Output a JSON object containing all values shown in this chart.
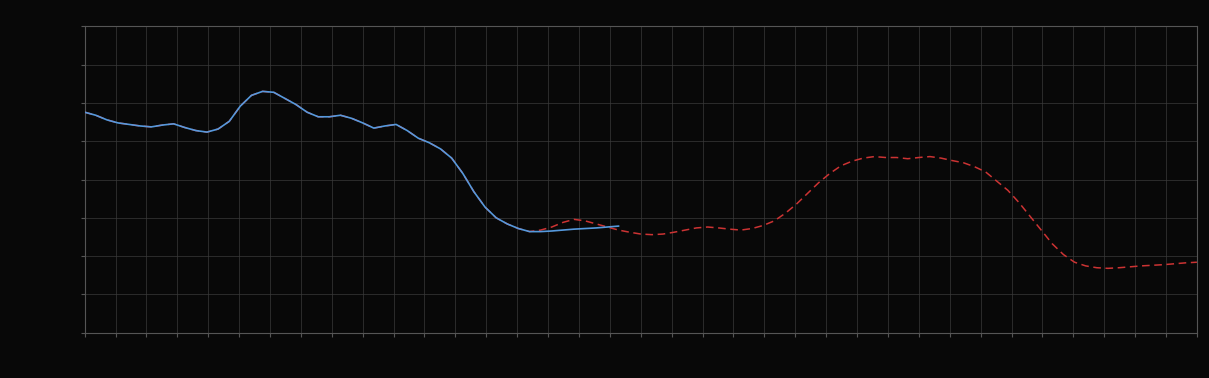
{
  "background_color": "#080808",
  "plot_bg_color": "#080808",
  "grid_color": "#3a3a3a",
  "blue_color": "#5599dd",
  "red_color": "#cc3333",
  "figsize": [
    12.09,
    3.78
  ],
  "dpi": 100,
  "xlim": [
    0,
    100
  ],
  "ylim": [
    0,
    10
  ],
  "blue_x": [
    0,
    1,
    2,
    3,
    4,
    5,
    6,
    7,
    8,
    9,
    10,
    11,
    12,
    13,
    14,
    15,
    16,
    17,
    18,
    19,
    20,
    21,
    22,
    23,
    24,
    25,
    26,
    27,
    28,
    29,
    30,
    31,
    32,
    33,
    34,
    35,
    36,
    37,
    38,
    39,
    40,
    41,
    42,
    43,
    44,
    45,
    46,
    47,
    48
  ],
  "blue_y": [
    7.2,
    7.1,
    6.95,
    6.85,
    6.8,
    6.75,
    6.72,
    6.78,
    6.82,
    6.7,
    6.6,
    6.55,
    6.65,
    6.9,
    7.4,
    7.75,
    7.88,
    7.85,
    7.65,
    7.45,
    7.2,
    7.05,
    7.05,
    7.1,
    7.0,
    6.85,
    6.68,
    6.75,
    6.8,
    6.6,
    6.35,
    6.2,
    6.0,
    5.7,
    5.2,
    4.6,
    4.1,
    3.75,
    3.55,
    3.4,
    3.3,
    3.3,
    3.32,
    3.35,
    3.38,
    3.4,
    3.42,
    3.45,
    3.48
  ],
  "red_x": [
    0,
    1,
    2,
    3,
    4,
    5,
    6,
    7,
    8,
    9,
    10,
    11,
    12,
    13,
    14,
    15,
    16,
    17,
    18,
    19,
    20,
    21,
    22,
    23,
    24,
    25,
    26,
    27,
    28,
    29,
    30,
    31,
    32,
    33,
    34,
    35,
    36,
    37,
    38,
    39,
    40,
    41,
    42,
    43,
    44,
    45,
    46,
    47,
    48,
    49,
    50,
    51,
    52,
    53,
    54,
    55,
    56,
    57,
    58,
    59,
    60,
    61,
    62,
    63,
    64,
    65,
    66,
    67,
    68,
    69,
    70,
    71,
    72,
    73,
    74,
    75,
    76,
    77,
    78,
    79,
    80,
    81,
    82,
    83,
    84,
    85,
    86,
    87,
    88,
    89,
    90,
    91,
    92,
    93,
    94,
    95,
    96,
    97,
    98,
    99,
    100
  ],
  "red_y": [
    7.2,
    7.1,
    6.95,
    6.85,
    6.8,
    6.75,
    6.72,
    6.78,
    6.82,
    6.7,
    6.6,
    6.55,
    6.65,
    6.9,
    7.4,
    7.75,
    7.88,
    7.85,
    7.65,
    7.45,
    7.2,
    7.05,
    7.05,
    7.1,
    7.0,
    6.85,
    6.68,
    6.75,
    6.8,
    6.6,
    6.35,
    6.2,
    6.0,
    5.7,
    5.2,
    4.6,
    4.1,
    3.75,
    3.55,
    3.4,
    3.3,
    3.35,
    3.45,
    3.6,
    3.7,
    3.65,
    3.55,
    3.45,
    3.35,
    3.28,
    3.22,
    3.2,
    3.22,
    3.28,
    3.35,
    3.42,
    3.45,
    3.42,
    3.38,
    3.35,
    3.4,
    3.5,
    3.65,
    3.9,
    4.2,
    4.55,
    4.9,
    5.2,
    5.45,
    5.6,
    5.7,
    5.75,
    5.72,
    5.72,
    5.68,
    5.72,
    5.75,
    5.7,
    5.62,
    5.55,
    5.42,
    5.25,
    4.95,
    4.65,
    4.25,
    3.8,
    3.35,
    2.9,
    2.55,
    2.3,
    2.18,
    2.12,
    2.1,
    2.12,
    2.15,
    2.18,
    2.2,
    2.22,
    2.25,
    2.28,
    2.3
  ]
}
